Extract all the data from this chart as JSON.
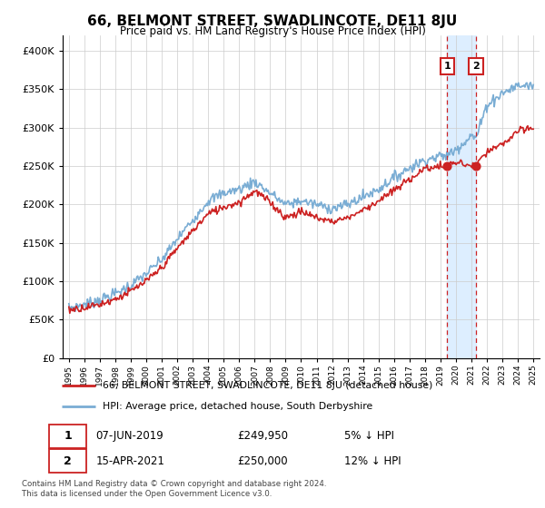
{
  "title": "66, BELMONT STREET, SWADLINCOTE, DE11 8JU",
  "subtitle": "Price paid vs. HM Land Registry's House Price Index (HPI)",
  "legend_line1": "66, BELMONT STREET, SWADLINCOTE, DE11 8JU (detached house)",
  "legend_line2": "HPI: Average price, detached house, South Derbyshire",
  "annotation1_date": "07-JUN-2019",
  "annotation1_price": "£249,950",
  "annotation1_hpi": "5% ↓ HPI",
  "annotation2_date": "15-APR-2021",
  "annotation2_price": "£250,000",
  "annotation2_hpi": "12% ↓ HPI",
  "footer": "Contains HM Land Registry data © Crown copyright and database right 2024.\nThis data is licensed under the Open Government Licence v3.0.",
  "hpi_color": "#7aadd4",
  "price_color": "#cc2222",
  "shade_color": "#ddeeff",
  "dashed_line_color": "#cc2222",
  "marker_color": "#cc2222",
  "ylim": [
    0,
    420000
  ],
  "yticks": [
    0,
    50000,
    100000,
    150000,
    200000,
    250000,
    300000,
    350000,
    400000
  ],
  "xlim_start": 1994.6,
  "xlim_end": 2025.4,
  "background_color": "#ffffff",
  "grid_color": "#cccccc",
  "sale1_x": 2019.44,
  "sale1_y": 249950,
  "sale2_x": 2021.29,
  "sale2_y": 250000
}
